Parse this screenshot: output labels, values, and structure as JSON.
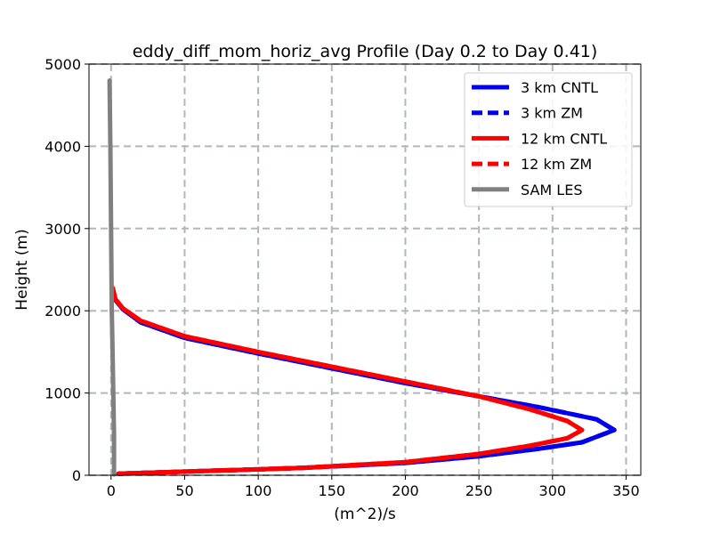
{
  "chart_data": {
    "type": "line",
    "title": "eddy_diff_mom_horiz_avg Profile (Day 0.2 to Day 0.41)",
    "xlabel": "(m^2)/s",
    "ylabel": "Height (m)",
    "xlim": [
      -15,
      360
    ],
    "ylim": [
      0,
      5000
    ],
    "xticks": [
      0,
      50,
      100,
      150,
      200,
      250,
      300,
      350
    ],
    "yticks": [
      0,
      1000,
      2000,
      3000,
      4000,
      5000
    ],
    "grid": true,
    "legend_position": "top-right",
    "series": [
      {
        "name": "3 km CNTL",
        "color": "#0000ee",
        "dash": "solid",
        "points": [
          [
            5,
            20
          ],
          [
            60,
            50
          ],
          [
            130,
            90
          ],
          [
            200,
            150
          ],
          [
            250,
            230
          ],
          [
            290,
            320
          ],
          [
            320,
            400
          ],
          [
            342,
            550
          ],
          [
            330,
            680
          ],
          [
            290,
            830
          ],
          [
            250,
            960
          ],
          [
            200,
            1120
          ],
          [
            150,
            1300
          ],
          [
            100,
            1480
          ],
          [
            50,
            1670
          ],
          [
            20,
            1860
          ],
          [
            8,
            2020
          ],
          [
            3,
            2130
          ],
          [
            1,
            2250
          ]
        ]
      },
      {
        "name": "3 km ZM",
        "color": "#0000ee",
        "dash": "dashed",
        "points": [
          [
            5,
            20
          ],
          [
            60,
            50
          ],
          [
            130,
            90
          ],
          [
            200,
            150
          ],
          [
            250,
            230
          ],
          [
            290,
            320
          ],
          [
            320,
            400
          ],
          [
            342,
            550
          ],
          [
            330,
            680
          ],
          [
            290,
            830
          ],
          [
            250,
            960
          ],
          [
            200,
            1120
          ],
          [
            150,
            1300
          ],
          [
            100,
            1480
          ],
          [
            50,
            1670
          ],
          [
            20,
            1860
          ],
          [
            8,
            2020
          ],
          [
            3,
            2130
          ],
          [
            1,
            2250
          ]
        ]
      },
      {
        "name": "12 km CNTL",
        "color": "#ff0000",
        "dash": "solid",
        "points": [
          [
            5,
            20
          ],
          [
            60,
            50
          ],
          [
            130,
            90
          ],
          [
            200,
            160
          ],
          [
            250,
            260
          ],
          [
            285,
            360
          ],
          [
            310,
            450
          ],
          [
            320,
            550
          ],
          [
            310,
            660
          ],
          [
            285,
            800
          ],
          [
            250,
            960
          ],
          [
            200,
            1140
          ],
          [
            150,
            1320
          ],
          [
            100,
            1500
          ],
          [
            50,
            1690
          ],
          [
            20,
            1880
          ],
          [
            8,
            2030
          ],
          [
            3,
            2140
          ],
          [
            1,
            2280
          ]
        ]
      },
      {
        "name": "12 km ZM",
        "color": "#ff0000",
        "dash": "dashed",
        "points": [
          [
            5,
            20
          ],
          [
            60,
            50
          ],
          [
            130,
            90
          ],
          [
            200,
            160
          ],
          [
            250,
            260
          ],
          [
            285,
            360
          ],
          [
            310,
            450
          ],
          [
            320,
            550
          ],
          [
            310,
            660
          ],
          [
            285,
            800
          ],
          [
            250,
            960
          ],
          [
            200,
            1140
          ],
          [
            150,
            1320
          ],
          [
            100,
            1500
          ],
          [
            50,
            1690
          ],
          [
            20,
            1880
          ],
          [
            8,
            2030
          ],
          [
            3,
            2140
          ],
          [
            1,
            2280
          ]
        ]
      },
      {
        "name": "SAM LES",
        "color": "#808080",
        "dash": "solid",
        "points": [
          [
            2,
            10
          ],
          [
            2,
            500
          ],
          [
            1.5,
            1000
          ],
          [
            1,
            1500
          ],
          [
            0.5,
            2000
          ],
          [
            0,
            3000
          ],
          [
            -0.5,
            4000
          ],
          [
            -1,
            4800
          ]
        ]
      }
    ]
  }
}
